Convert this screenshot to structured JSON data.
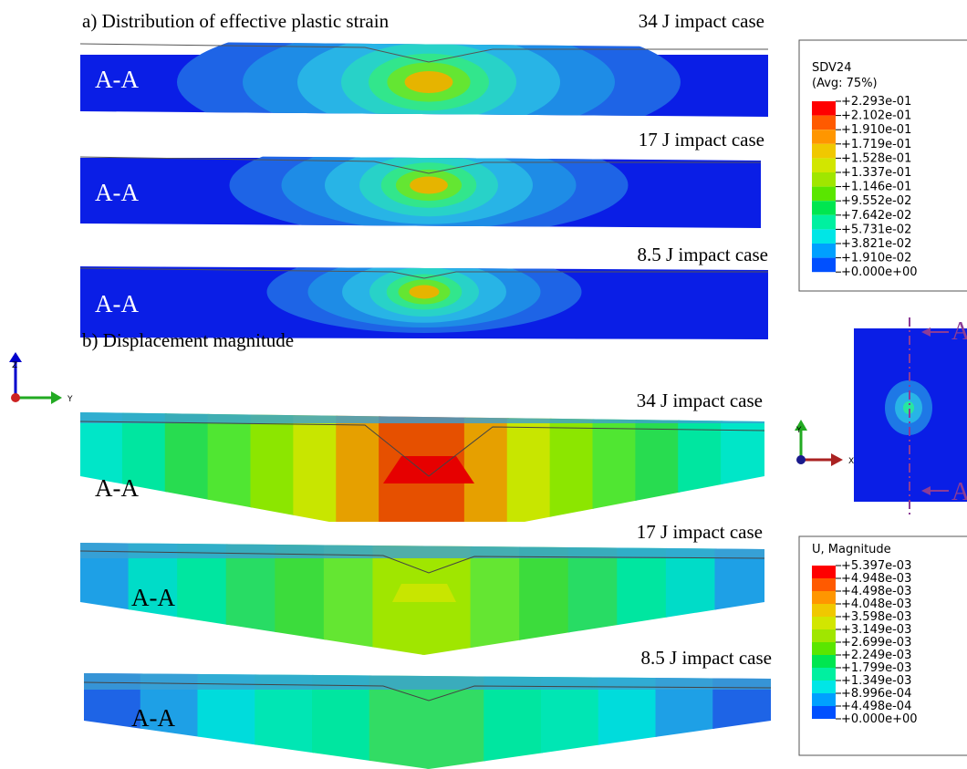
{
  "panel_a": {
    "title": "a) Distribution of effective plastic strain",
    "cases": [
      {
        "label": "34 J impact case",
        "section": "A-A"
      },
      {
        "label": "17 J impact case",
        "section": "A-A"
      },
      {
        "label": "8.5 J impact case",
        "section": "A-A"
      }
    ]
  },
  "panel_b": {
    "title": "b) Displacement magnitude",
    "cases": [
      {
        "label": "34 J impact case",
        "section": "A-A"
      },
      {
        "label": "17 J impact case",
        "section": "A-A"
      },
      {
        "label": "8.5 J impact case",
        "section": "A-A"
      }
    ]
  },
  "legend_strain": {
    "title": "SDV24",
    "subtitle": "(Avg: 75%)",
    "labels": [
      "+2.293e-01",
      "+2.102e-01",
      "+1.910e-01",
      "+1.719e-01",
      "+1.528e-01",
      "+1.337e-01",
      "+1.146e-01",
      "+9.552e-02",
      "+7.642e-02",
      "+5.731e-02",
      "+3.821e-02",
      "+1.910e-02",
      "+0.000e+00"
    ],
    "colors": [
      "#ff0000",
      "#ff5a00",
      "#ff9600",
      "#f0c800",
      "#d2e600",
      "#a0e600",
      "#5ae600",
      "#00e650",
      "#00f0a0",
      "#00e6e6",
      "#00a0ff",
      "#0050ff"
    ]
  },
  "legend_displacement": {
    "title": "U, Magnitude",
    "labels": [
      "+5.397e-03",
      "+4.948e-03",
      "+4.498e-03",
      "+4.048e-03",
      "+3.598e-03",
      "+3.149e-03",
      "+2.699e-03",
      "+2.249e-03",
      "+1.799e-03",
      "+1.349e-03",
      "+8.996e-04",
      "+4.498e-04",
      "+0.000e+00"
    ],
    "colors": [
      "#ff0000",
      "#ff5a00",
      "#ff9600",
      "#f0c800",
      "#d2e600",
      "#a0e600",
      "#5ae600",
      "#00e650",
      "#00f0a0",
      "#00e6e6",
      "#00a0ff",
      "#0050ff"
    ]
  },
  "triad_side": {
    "vertical": "Z",
    "horizontal": "Y"
  },
  "triad_top": {
    "vertical": "Y",
    "horizontal": "X"
  },
  "section_marker": {
    "top": "A",
    "bottom": "A"
  }
}
